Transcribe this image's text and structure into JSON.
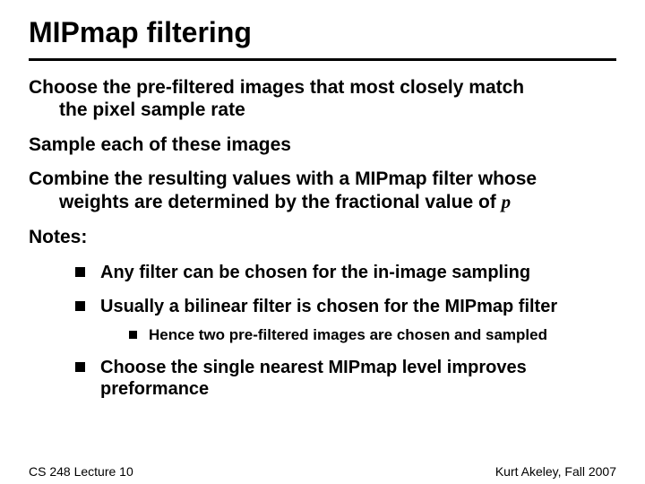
{
  "title": "MIPmap filtering",
  "para1_l1": "Choose the pre-filtered images that most closely match",
  "para1_l2": "the pixel sample rate",
  "para2": "Sample each of these images",
  "para3_l1": "Combine the resulting values with a MIPmap filter whose",
  "para3_l2_a": "weights are determined by the fractional value of ",
  "para3_l2_b": "p",
  "para4": "Notes:",
  "b1": "Any filter can be chosen for the in-image sampling",
  "b2": "Usually a bilinear filter is chosen for the MIPmap filter",
  "b2_s1": "Hence two pre-filtered images are chosen and sampled",
  "b3": "Choose the single nearest MIPmap level improves preformance",
  "footer_left": "CS 248 Lecture 10",
  "footer_right": "Kurt Akeley, Fall 2007",
  "colors": {
    "text": "#000000",
    "background": "#ffffff",
    "rule": "#000000",
    "bullet": "#000000"
  },
  "fonts": {
    "title_pt": 32,
    "body_pt": 21,
    "bullet_pt": 20,
    "subbullet_pt": 17,
    "footer_pt": 14,
    "weight": 700
  }
}
